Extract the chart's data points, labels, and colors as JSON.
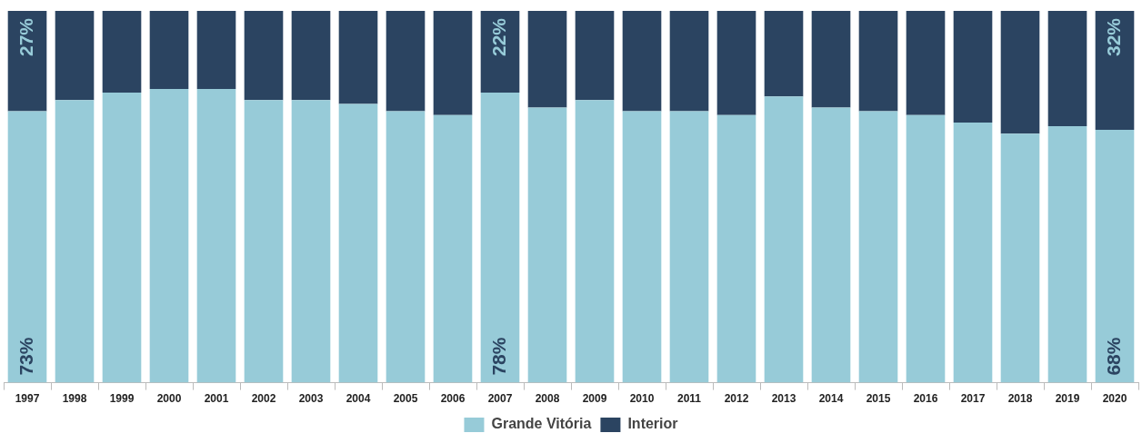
{
  "chart_data": {
    "type": "bar",
    "stacked": true,
    "categories": [
      "1997",
      "1998",
      "1999",
      "2000",
      "2001",
      "2002",
      "2003",
      "2004",
      "2005",
      "2006",
      "2007",
      "2008",
      "2009",
      "2010",
      "2011",
      "2012",
      "2013",
      "2014",
      "2015",
      "2016",
      "2017",
      "2018",
      "2019",
      "2020"
    ],
    "ylim": [
      0,
      100
    ],
    "tick_labels": "x",
    "legend": "bottom",
    "grid": false,
    "series": [
      {
        "name": "Grande Vitória",
        "color": "#97cbd8",
        "values": [
          73,
          76,
          78,
          79,
          79,
          76,
          76,
          75,
          73,
          72,
          78,
          74,
          76,
          73,
          73,
          72,
          77,
          74,
          73,
          72,
          70,
          67,
          69,
          68
        ],
        "value_labels": [
          "73%",
          null,
          null,
          null,
          null,
          null,
          null,
          null,
          null,
          null,
          "78%",
          null,
          null,
          null,
          null,
          null,
          null,
          null,
          null,
          null,
          null,
          null,
          null,
          "68%"
        ]
      },
      {
        "name": "Interior",
        "color": "#2b4461",
        "values": [
          27,
          24,
          22,
          21,
          21,
          24,
          24,
          25,
          27,
          28,
          22,
          26,
          24,
          27,
          27,
          28,
          23,
          26,
          27,
          28,
          30,
          33,
          31,
          32
        ],
        "value_labels": [
          "27%",
          null,
          null,
          null,
          null,
          null,
          null,
          null,
          null,
          null,
          "22%",
          null,
          null,
          null,
          null,
          null,
          null,
          null,
          null,
          null,
          null,
          null,
          null,
          "32%"
        ]
      }
    ]
  }
}
